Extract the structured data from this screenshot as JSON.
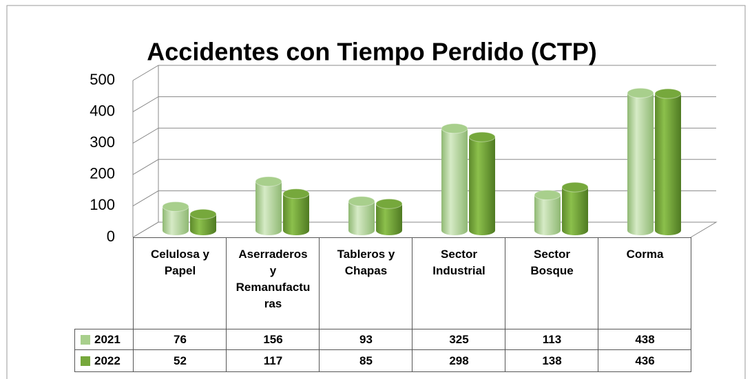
{
  "chart_data": {
    "type": "bar3d",
    "title": "Accidentes con Tiempo Perdido (CTP)",
    "categories": [
      "Celulosa y Papel",
      "Aserraderos y Remanufacturas",
      "Tableros y Chapas",
      "Sector Industrial",
      "Sector Bosque",
      "Corma"
    ],
    "series": [
      {
        "name": "2021",
        "color": "#a8cf8c",
        "values": [
          76,
          156,
          93,
          325,
          113,
          438
        ]
      },
      {
        "name": "2022",
        "color": "#76a83c",
        "values": [
          52,
          117,
          85,
          298,
          138,
          436
        ]
      }
    ],
    "ylim": [
      0,
      500
    ],
    "yticks": [
      0,
      100,
      200,
      300,
      400,
      500
    ],
    "grid": true
  }
}
